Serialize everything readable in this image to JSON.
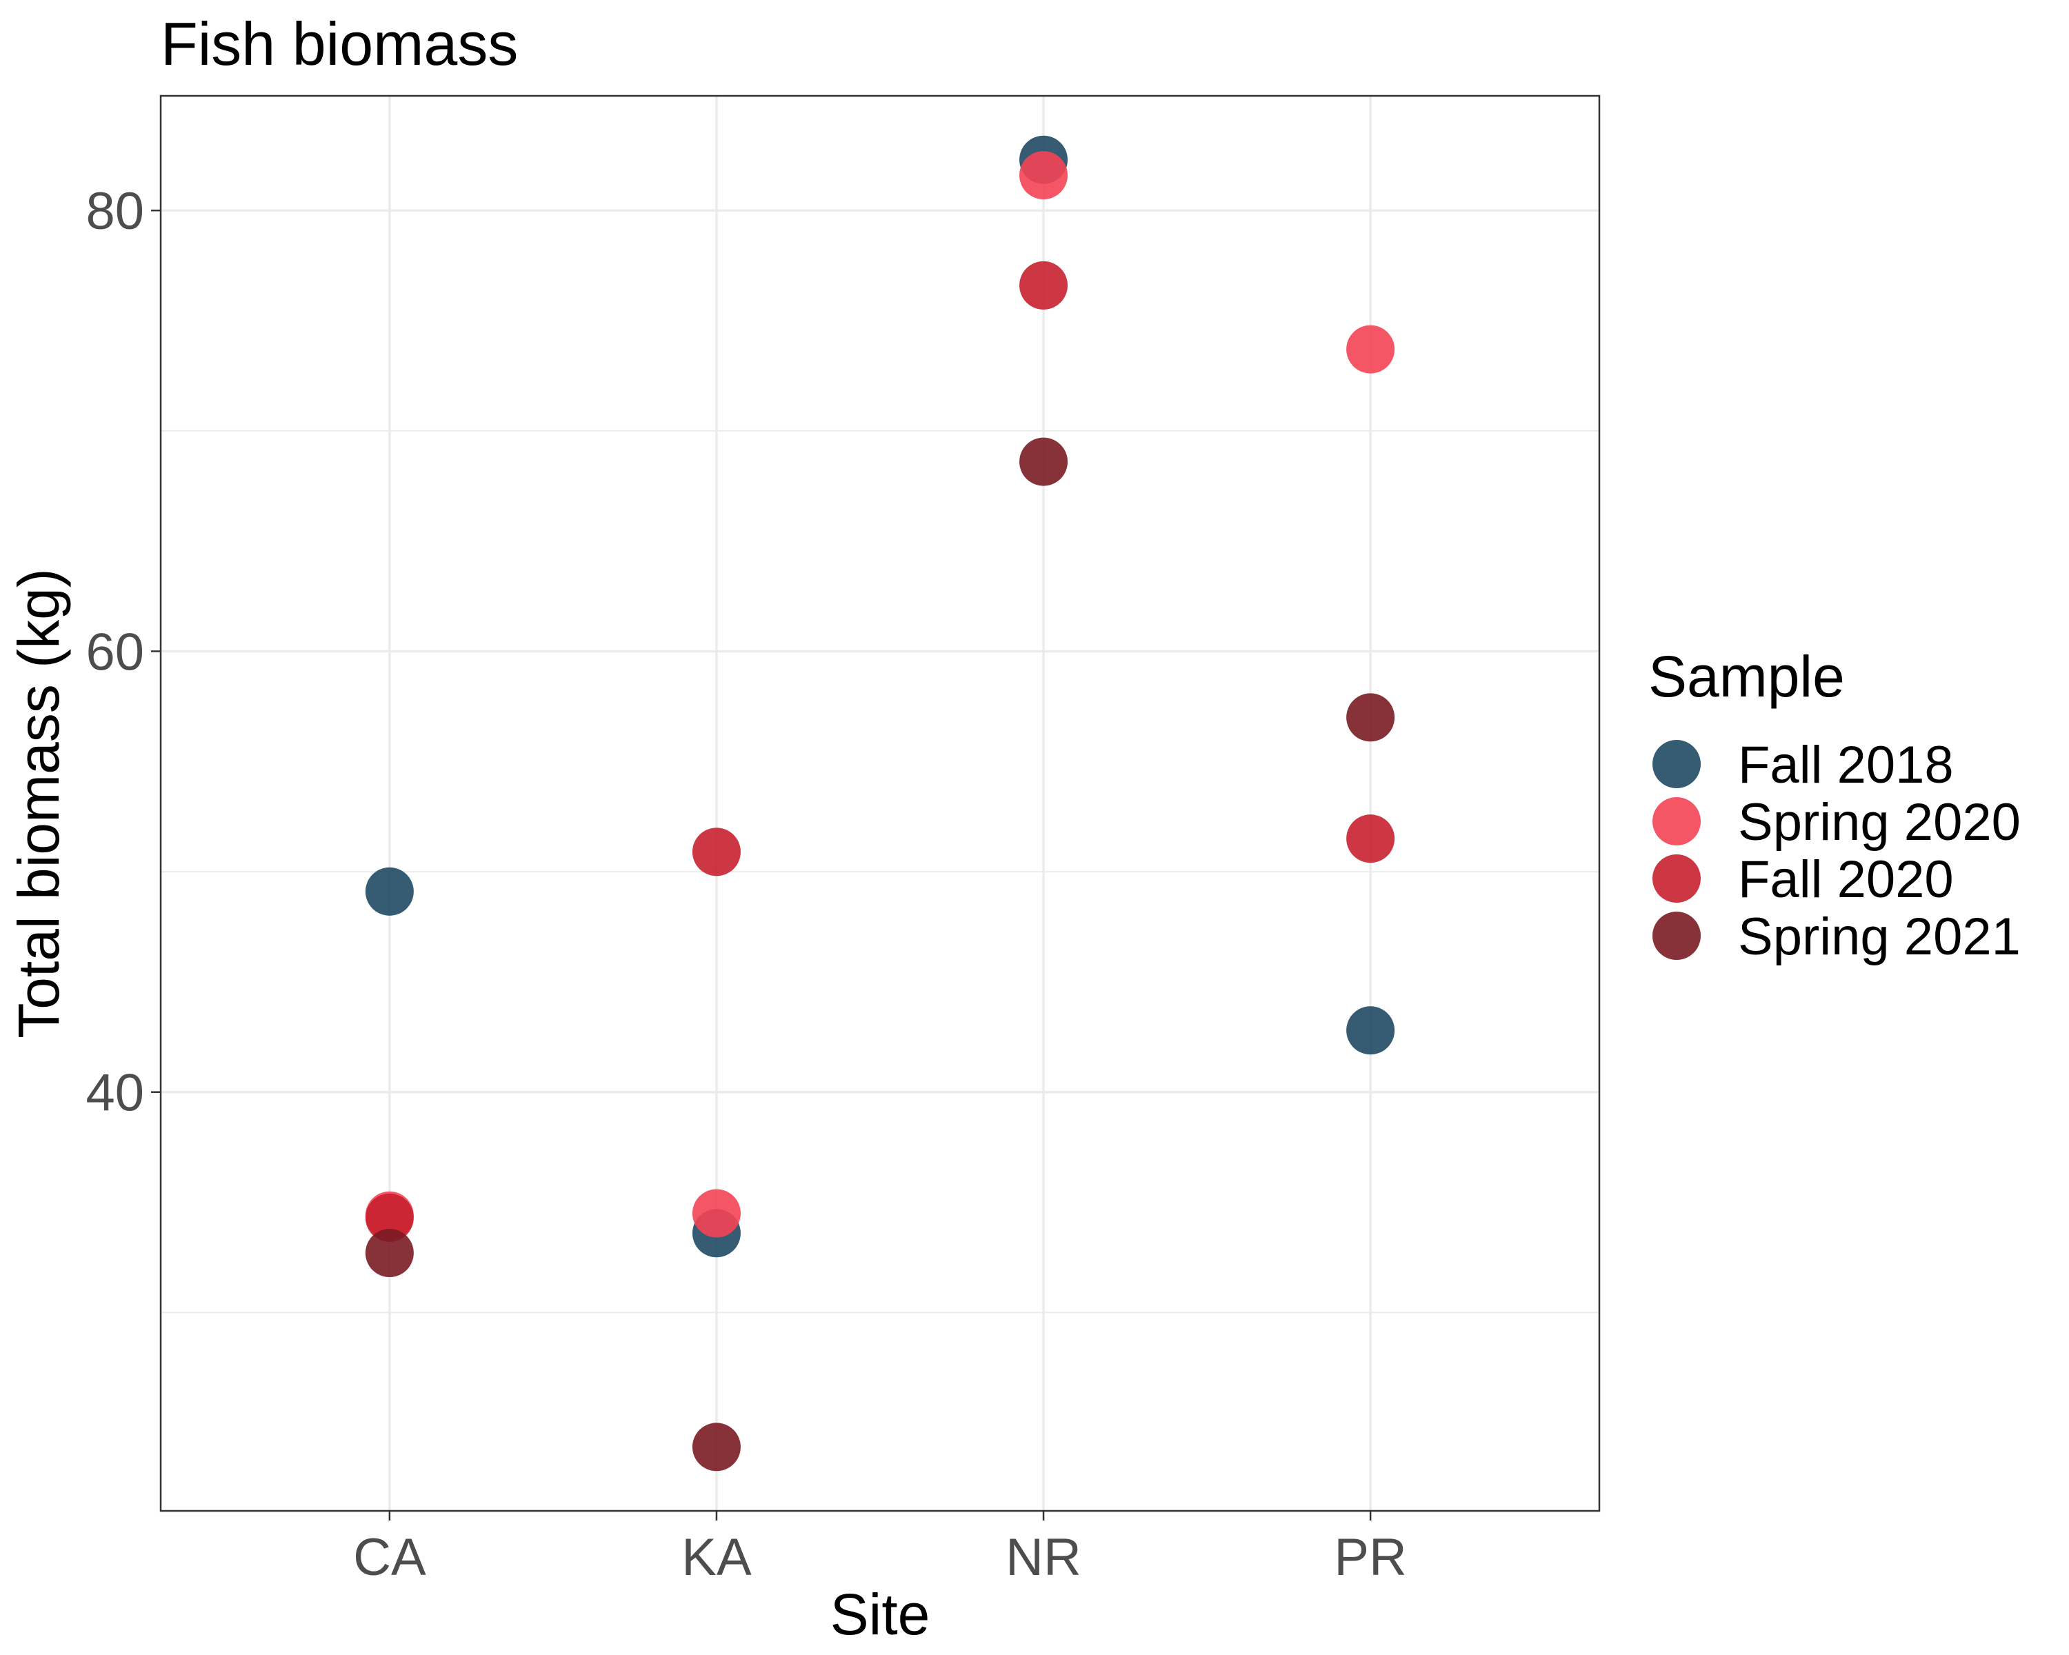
{
  "chart_data": {
    "type": "scatter",
    "title": "Fish biomass",
    "xlabel": "Site",
    "ylabel": "Total biomass (kg)",
    "categories": [
      "CA",
      "KA",
      "NR",
      "PR"
    ],
    "ylim": [
      21,
      85.2
    ],
    "yticks": [
      40,
      60,
      80
    ],
    "grid": true,
    "legend": {
      "title": "Sample",
      "placement": "right"
    },
    "series": [
      {
        "name": "Fall 2018",
        "color": "#1f4a63",
        "values": [
          49.1,
          33.6,
          82.3,
          42.8
        ]
      },
      {
        "name": "Spring 2020",
        "color": "#f44455",
        "values": [
          34.4,
          34.5,
          81.6,
          73.7
        ]
      },
      {
        "name": "Fall 2020",
        "color": "#c8202f",
        "values": [
          34.3,
          50.9,
          76.6,
          51.5
        ]
      },
      {
        "name": "Spring 2021",
        "color": "#7a1b22",
        "values": [
          32.7,
          23.9,
          68.6,
          57.0
        ]
      }
    ]
  }
}
